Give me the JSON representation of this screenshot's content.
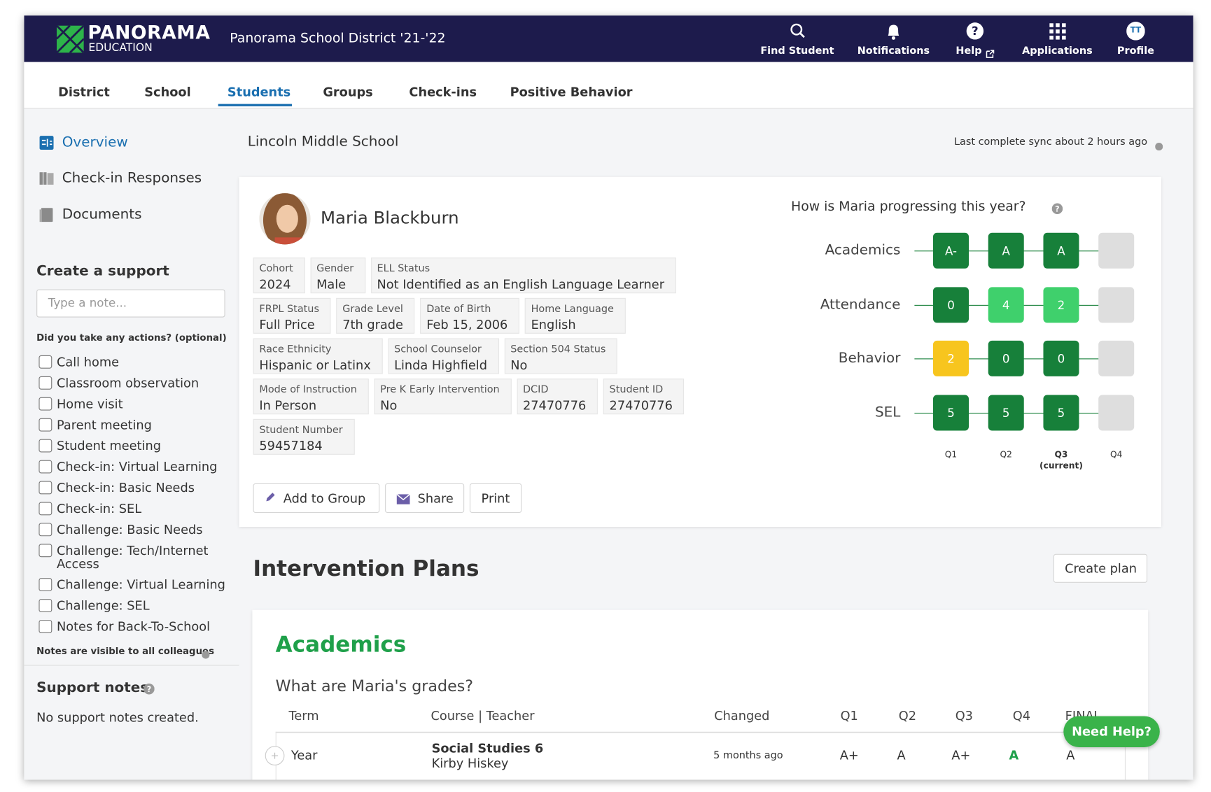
{
  "header": {
    "logo_title": "PANORAMA",
    "logo_subtitle": "EDUCATION",
    "district": "Panorama School District '21-'22",
    "nav": [
      "Find Student",
      "Notifications",
      "Help",
      "Applications",
      "Profile"
    ],
    "profile_initials": "TT"
  },
  "tabs": {
    "items": [
      "District",
      "School",
      "Students",
      "Groups",
      "Check-ins",
      "Positive Behavior"
    ],
    "active": 2
  },
  "sidebar": {
    "nav": [
      "Overview",
      "Check-in Responses",
      "Documents"
    ],
    "support_title": "Create a support",
    "note_placeholder": "Type a note...",
    "actions_prompt": "Did you take any actions? (optional)",
    "actions": [
      "Call home",
      "Classroom observation",
      "Home visit",
      "Parent meeting",
      "Student meeting",
      "Check-in: Virtual Learning",
      "Check-in: Basic Needs",
      "Check-in: SEL",
      "Challenge: Basic Needs",
      "Challenge: Tech/Internet Access",
      "Challenge: Virtual Learning",
      "Challenge: SEL",
      "Notes for Back-To-School"
    ],
    "visibility_note": "Notes are visible to all colleagues",
    "notes_title": "Support notes",
    "notes_empty": "No support notes created."
  },
  "school": "Lincoln Middle School",
  "sync": "Last complete sync about 2 hours ago",
  "student": {
    "name": "Maria Blackburn",
    "fields": [
      [
        {
          "label": "Cohort",
          "value": "2024"
        },
        {
          "label": "Gender",
          "value": "Male"
        },
        {
          "label": "ELL Status",
          "value": "Not Identified as an English Language Learner"
        }
      ],
      [
        {
          "label": "FRPL Status",
          "value": "Full Price"
        },
        {
          "label": "Grade Level",
          "value": "7th grade"
        },
        {
          "label": "Date of Birth",
          "value": "Feb 15, 2006"
        },
        {
          "label": "Home Language",
          "value": "English"
        }
      ],
      [
        {
          "label": "Race Ethnicity",
          "value": "Hispanic or Latinx"
        },
        {
          "label": "School Counselor",
          "value": "Linda Highfield"
        },
        {
          "label": "Section 504 Status",
          "value": "No"
        }
      ],
      [
        {
          "label": "Mode of Instruction",
          "value": "In Person"
        },
        {
          "label": "Pre K Early Intervention",
          "value": "No"
        },
        {
          "label": "DCID",
          "value": "27470776"
        },
        {
          "label": "Student ID",
          "value": "27470776"
        }
      ],
      [
        {
          "label": "Student Number",
          "value": "59457184"
        }
      ]
    ],
    "buttons": [
      "Add to Group",
      "Share",
      "Print"
    ]
  },
  "progress": {
    "title": "How is Maria progressing this year?",
    "quarters": [
      "Q1",
      "Q2",
      "Q3",
      "Q4"
    ],
    "current_note": "(current)",
    "rows": [
      {
        "name": "Academics",
        "cells": [
          "A-",
          "A",
          "A",
          null
        ],
        "colors": [
          "#17803a",
          "#17803a",
          "#17803a",
          null
        ]
      },
      {
        "name": "Attendance",
        "cells": [
          "0",
          "4",
          "2",
          null
        ],
        "colors": [
          "#17803a",
          "#3fd06c",
          "#3fd06c",
          null
        ]
      },
      {
        "name": "Behavior",
        "cells": [
          "2",
          "0",
          "0",
          null
        ],
        "colors": [
          "#f7c51e",
          "#17803a",
          "#17803a",
          null
        ]
      },
      {
        "name": "SEL",
        "cells": [
          "5",
          "5",
          "5",
          null
        ],
        "colors": [
          "#17803a",
          "#17803a",
          "#17803a",
          null
        ]
      }
    ]
  },
  "interventions": {
    "title": "Intervention Plans",
    "create": "Create plan",
    "section": "Academics",
    "question": "What are Maria's grades?",
    "columns": [
      "Term",
      "Course | Teacher",
      "Changed",
      "Q1",
      "Q2",
      "Q3",
      "Q4",
      "FINAL"
    ],
    "rows": [
      {
        "term": "Year",
        "course": "Social Studies 6",
        "teacher": "Kirby Hiskey",
        "changed": "5 months ago",
        "grades": [
          "A+",
          "A",
          "A+",
          "A",
          "A"
        ]
      }
    ]
  },
  "help_button": "Need Help?"
}
